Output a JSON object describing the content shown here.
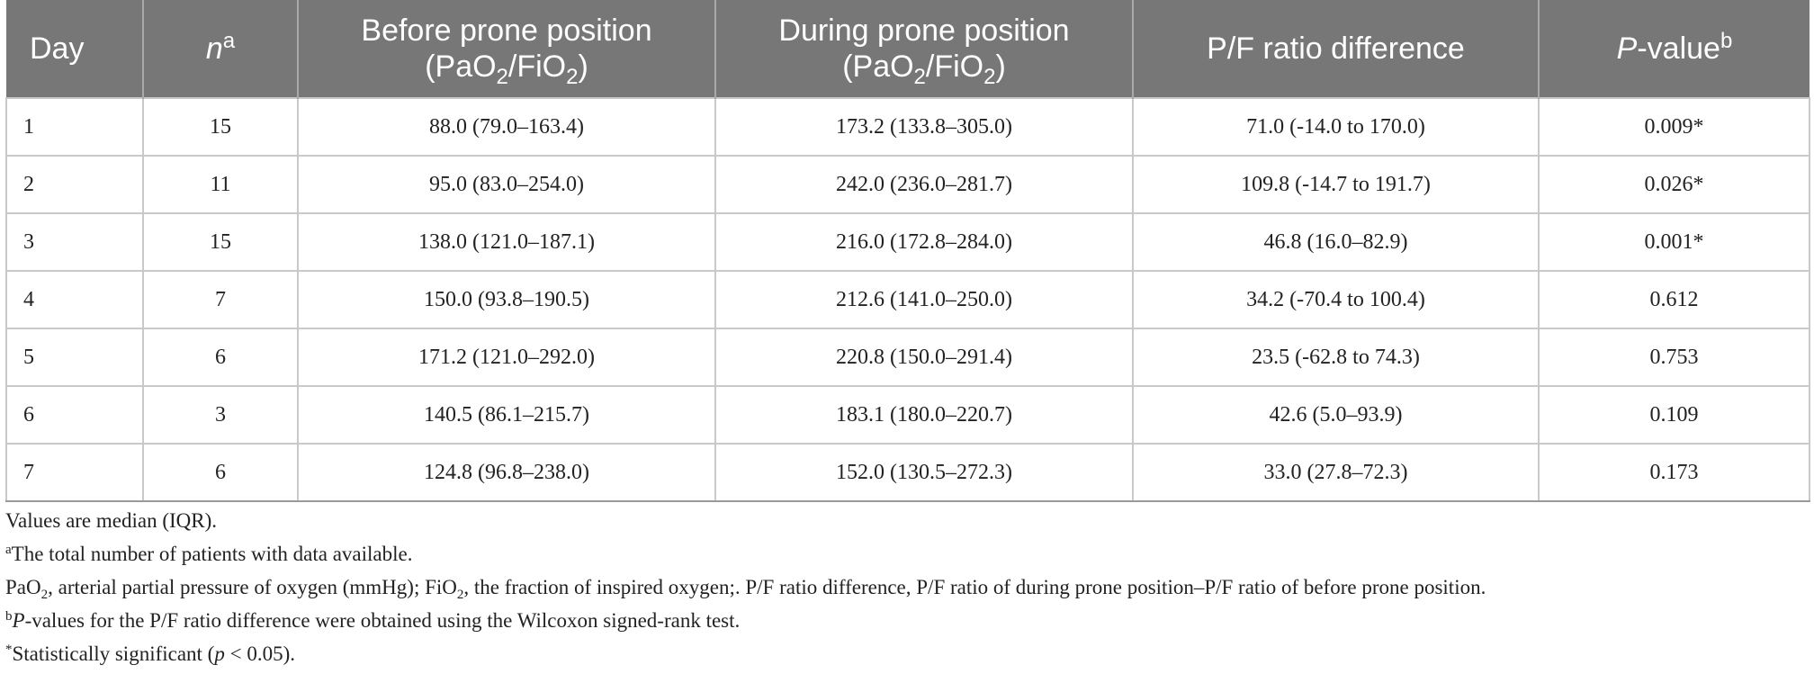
{
  "header": {
    "day": "Day",
    "n": "n",
    "n_sup": "a",
    "before_line1": "Before prone position",
    "during_line1": "During prone position",
    "ratio_pa": "(PaO",
    "ratio_sub": "2",
    "ratio_mid": "/FiO",
    "ratio_end": ")",
    "pf_diff": "P/F ratio difference",
    "pvalue_p": "P",
    "pvalue_rest": "-value",
    "pvalue_sup": "b"
  },
  "rows": [
    {
      "day": "1",
      "n": "15",
      "before": "88.0 (79.0–163.4)",
      "during": "173.2 (133.8–305.0)",
      "diff": "71.0 (-14.0 to 170.0)",
      "p": "0.009*"
    },
    {
      "day": "2",
      "n": "11",
      "before": "95.0 (83.0–254.0)",
      "during": "242.0 (236.0–281.7)",
      "diff": "109.8 (-14.7 to 191.7)",
      "p": "0.026*"
    },
    {
      "day": "3",
      "n": "15",
      "before": "138.0 (121.0–187.1)",
      "during": "216.0 (172.8–284.0)",
      "diff": "46.8 (16.0–82.9)",
      "p": "0.001*"
    },
    {
      "day": "4",
      "n": "7",
      "before": "150.0 (93.8–190.5)",
      "during": "212.6 (141.0–250.0)",
      "diff": "34.2 (-70.4 to 100.4)",
      "p": "0.612"
    },
    {
      "day": "5",
      "n": "6",
      "before": "171.2 (121.0–292.0)",
      "during": "220.8 (150.0–291.4)",
      "diff": "23.5 (-62.8 to 74.3)",
      "p": "0.753"
    },
    {
      "day": "6",
      "n": "3",
      "before": "140.5 (86.1–215.7)",
      "during": "183.1 (180.0–220.7)",
      "diff": "42.6 (5.0–93.9)",
      "p": "0.109"
    },
    {
      "day": "7",
      "n": "6",
      "before": "124.8 (96.8–238.0)",
      "during": "152.0 (130.5–272.3)",
      "diff": "33.0 (27.8–72.3)",
      "p": "0.173"
    }
  ],
  "notes": {
    "values": "Values are median (IQR).",
    "a_sup": "a",
    "a_text": "The total number of patients with data available.",
    "abbr_pao": "PaO",
    "abbr_sub": "2",
    "abbr_mid": ", arterial partial pressure of oxygen (mmHg); FiO",
    "abbr_sub2": "2",
    "abbr_end": ", the fraction of inspired oxygen;. P/F ratio difference, P/F ratio of during prone position–P/F ratio of before prone position.",
    "b_sup": "b",
    "b_p": "P",
    "b_text": "-values for the P/F ratio difference were obtained using the Wilcoxon signed-rank test.",
    "sig_star": "*",
    "sig_text1": "Statistically significant (",
    "sig_p": "p",
    "sig_text2": " < 0.05)."
  }
}
